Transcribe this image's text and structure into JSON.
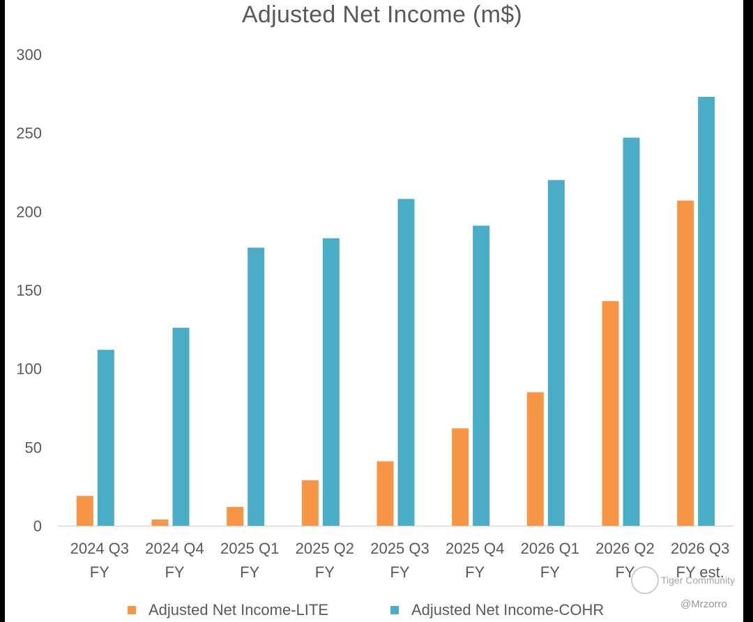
{
  "chart_data": {
    "type": "bar",
    "title": "Adjusted Net Income (m$)",
    "categories": [
      [
        "2024 Q3",
        "FY"
      ],
      [
        "2024 Q4",
        "FY"
      ],
      [
        "2025 Q1",
        "FY"
      ],
      [
        "2025 Q2",
        "FY"
      ],
      [
        "2025 Q3",
        "FY"
      ],
      [
        "2025 Q4",
        "FY"
      ],
      [
        "2026 Q1",
        "FY"
      ],
      [
        "2026 Q2",
        "FY"
      ],
      [
        "2026 Q3",
        "FY est."
      ]
    ],
    "series": [
      {
        "name": "Adjusted Net Income-LITE",
        "color": "#F79646",
        "values": [
          19,
          4,
          12,
          29,
          41,
          62,
          85,
          143,
          207
        ]
      },
      {
        "name": "Adjusted Net Income-COHR",
        "color": "#4BACC6",
        "values": [
          112,
          126,
          177,
          183,
          208,
          191,
          220,
          247,
          273
        ]
      }
    ],
    "ylim": [
      0,
      300
    ],
    "yticks": [
      0,
      50,
      100,
      150,
      200,
      250,
      300
    ],
    "grid": false,
    "legend_position": "bottom"
  },
  "watermark": {
    "brand": "Tiger Community",
    "handle": "@Mrzorro"
  }
}
